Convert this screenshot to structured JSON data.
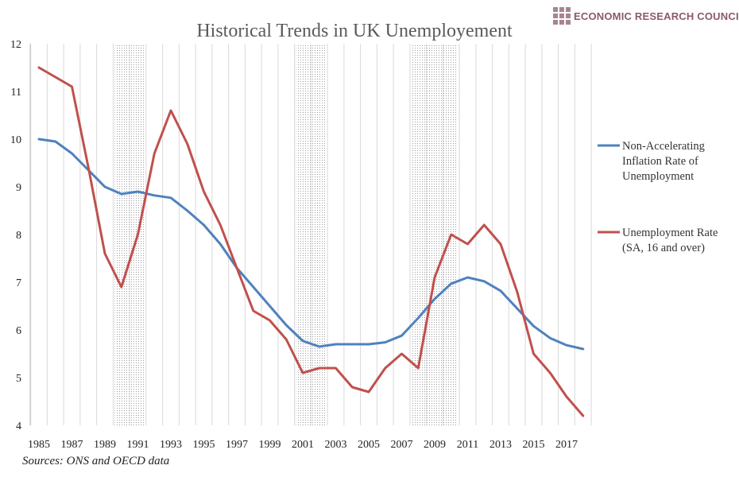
{
  "brand": {
    "name": "ECONOMIC RESEARCH COUNCIL",
    "color": "#8b5a6a"
  },
  "source_note": "Sources: ONS and OECD data",
  "chart_data": {
    "type": "line",
    "title": "Historical Trends in UK Unemployement",
    "xlabel": "",
    "ylabel": "",
    "x": [
      1985,
      1986,
      1987,
      1988,
      1989,
      1990,
      1991,
      1992,
      1993,
      1994,
      1995,
      1996,
      1997,
      1998,
      1999,
      2000,
      2001,
      2002,
      2003,
      2004,
      2005,
      2006,
      2007,
      2008,
      2009,
      2010,
      2011,
      2012,
      2013,
      2014,
      2015,
      2016,
      2017,
      2018
    ],
    "x_tick_labels": [
      "1985",
      "1987",
      "1989",
      "1991",
      "1993",
      "1995",
      "1997",
      "1999",
      "2001",
      "2003",
      "2005",
      "2007",
      "2009",
      "2011",
      "2013",
      "2015",
      "2017"
    ],
    "ylim": [
      4,
      12
    ],
    "y_ticks": [
      4,
      5,
      6,
      7,
      8,
      9,
      10,
      11,
      12
    ],
    "grid": "vertical",
    "legend_position": "right",
    "recession_shading": [
      [
        1990,
        1991
      ],
      [
        2001,
        2002
      ],
      [
        2008,
        2010
      ]
    ],
    "series": [
      {
        "name": "Non-Accelerating Inflation Rate of Unemployment",
        "color": "#4f81bd",
        "values": [
          10.0,
          9.95,
          9.7,
          9.35,
          9.0,
          8.85,
          8.9,
          8.82,
          8.77,
          8.5,
          8.2,
          7.8,
          7.3,
          6.9,
          6.5,
          6.1,
          5.77,
          5.65,
          5.7,
          5.7,
          5.7,
          5.74,
          5.88,
          6.25,
          6.65,
          6.97,
          7.1,
          7.02,
          6.82,
          6.45,
          6.08,
          5.83,
          5.68,
          5.6
        ]
      },
      {
        "name": "Unemployment Rate (SA, 16 and over)",
        "color": "#c0504d",
        "values": [
          11.5,
          11.3,
          11.1,
          9.4,
          7.6,
          6.9,
          8.0,
          9.7,
          10.6,
          9.9,
          8.9,
          8.2,
          7.3,
          6.4,
          6.2,
          5.8,
          5.1,
          5.2,
          5.2,
          4.8,
          4.7,
          5.2,
          5.5,
          5.2,
          7.1,
          8.0,
          7.8,
          8.2,
          7.8,
          6.8,
          5.5,
          5.1,
          4.6,
          4.2
        ]
      }
    ]
  },
  "legend": {
    "lines": [
      [
        "Non-Accelerating",
        "Inflation Rate of",
        "Unemployment"
      ],
      [
        "Unemployment Rate",
        "(SA, 16 and over)"
      ]
    ]
  }
}
